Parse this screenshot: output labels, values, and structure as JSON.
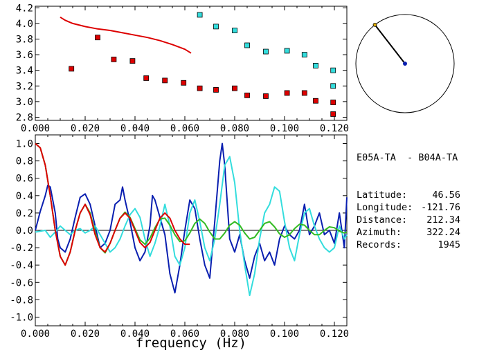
{
  "chart_data": [
    {
      "type": "scatter",
      "xlabel": "",
      "ylabel": "",
      "xlim": [
        0.0,
        0.125
      ],
      "ylim": [
        2.76,
        4.22
      ],
      "x_ticks": [
        "0.000",
        "0.020",
        "0.040",
        "0.060",
        "0.080",
        "0.100",
        "0.120"
      ],
      "y_ticks": [
        "2.8",
        "3.0",
        "3.2",
        "3.4",
        "3.6",
        "3.8",
        "4.0",
        "4.2"
      ],
      "series": [
        {
          "color": "#dd0000",
          "kind": "line",
          "x": [
            0.01,
            0.012,
            0.015,
            0.02,
            0.025,
            0.03,
            0.035,
            0.04,
            0.045,
            0.05,
            0.055,
            0.06,
            0.0625
          ],
          "y": [
            4.08,
            4.04,
            4.0,
            3.96,
            3.93,
            3.91,
            3.88,
            3.85,
            3.82,
            3.78,
            3.73,
            3.67,
            3.62
          ]
        },
        {
          "color": "#dd0000",
          "kind": "markers",
          "x": [
            0.0145,
            0.025,
            0.0315,
            0.039,
            0.0445,
            0.052,
            0.0595,
            0.066,
            0.0725,
            0.08,
            0.085,
            0.0925,
            0.101,
            0.108,
            0.1125,
            0.1195
          ],
          "y": [
            3.42,
            3.82,
            3.54,
            3.52,
            3.3,
            3.27,
            3.24,
            3.17,
            3.15,
            3.17,
            3.08,
            3.07,
            3.11,
            3.11,
            3.01,
            2.99
          ]
        },
        {
          "color": "#dd0000",
          "kind": "markers",
          "x": [
            0.1195
          ],
          "y": [
            2.84
          ]
        },
        {
          "color": "#33dddd",
          "kind": "markers",
          "x": [
            0.066,
            0.0725,
            0.08,
            0.085,
            0.0925,
            0.101,
            0.108,
            0.1125,
            0.1195,
            0.1195
          ],
          "y": [
            4.11,
            3.96,
            3.91,
            3.72,
            3.64,
            3.65,
            3.6,
            3.46,
            3.4,
            3.2
          ]
        }
      ]
    },
    {
      "type": "line",
      "xlabel": "frequency (Hz)",
      "ylabel": "",
      "xlim": [
        0.0,
        0.125
      ],
      "ylim": [
        -1.1,
        1.1
      ],
      "x_ticks": [
        "0.000",
        "0.020",
        "0.040",
        "0.060",
        "0.080",
        "0.100",
        "0.120"
      ],
      "y_ticks": [
        "-1.0",
        "-0.8",
        "-0.6",
        "-0.4",
        "-0.2",
        "0.0",
        "0.2",
        "0.4",
        "0.6",
        "0.8",
        "1.0"
      ],
      "zero_line": true,
      "series": [
        {
          "color": "#0a1fb0",
          "x": [
            0.0,
            0.002,
            0.004,
            0.005,
            0.006,
            0.008,
            0.009,
            0.01,
            0.012,
            0.014,
            0.016,
            0.018,
            0.02,
            0.022,
            0.024,
            0.026,
            0.028,
            0.03,
            0.032,
            0.034,
            0.035,
            0.036,
            0.038,
            0.04,
            0.042,
            0.044,
            0.046,
            0.047,
            0.048,
            0.05,
            0.052,
            0.054,
            0.056,
            0.058,
            0.06,
            0.062,
            0.064,
            0.066,
            0.068,
            0.07,
            0.072,
            0.074,
            0.075,
            0.076,
            0.078,
            0.08,
            0.082,
            0.084,
            0.086,
            0.088,
            0.09,
            0.092,
            0.094,
            0.096,
            0.098,
            0.1,
            0.102,
            0.104,
            0.106,
            0.108,
            0.11,
            0.112,
            0.114,
            0.116,
            0.118,
            0.12,
            0.122,
            0.124,
            0.125
          ],
          "y": [
            0.0,
            0.22,
            0.4,
            0.52,
            0.5,
            0.2,
            -0.1,
            -0.2,
            -0.25,
            -0.1,
            0.15,
            0.38,
            0.42,
            0.3,
            0.05,
            -0.2,
            -0.15,
            0.0,
            0.3,
            0.35,
            0.5,
            0.35,
            0.1,
            -0.2,
            -0.35,
            -0.25,
            0.05,
            0.4,
            0.35,
            0.15,
            -0.05,
            -0.5,
            -0.72,
            -0.4,
            0.0,
            0.35,
            0.25,
            -0.1,
            -0.4,
            -0.55,
            0.1,
            0.8,
            1.0,
            0.75,
            -0.1,
            -0.25,
            -0.05,
            -0.35,
            -0.55,
            -0.3,
            -0.15,
            -0.35,
            -0.25,
            -0.4,
            -0.1,
            0.05,
            -0.05,
            -0.1,
            0.0,
            0.3,
            -0.05,
            0.05,
            0.2,
            -0.05,
            0.0,
            -0.15,
            0.2,
            -0.2,
            0.38
          ]
        },
        {
          "color": "#33dddd",
          "x": [
            0.0,
            0.004,
            0.006,
            0.008,
            0.01,
            0.012,
            0.014,
            0.016,
            0.018,
            0.02,
            0.022,
            0.024,
            0.026,
            0.028,
            0.03,
            0.032,
            0.034,
            0.036,
            0.038,
            0.04,
            0.042,
            0.044,
            0.046,
            0.048,
            0.05,
            0.052,
            0.054,
            0.056,
            0.058,
            0.06,
            0.062,
            0.064,
            0.066,
            0.068,
            0.07,
            0.072,
            0.074,
            0.076,
            0.078,
            0.08,
            0.082,
            0.084,
            0.086,
            0.088,
            0.09,
            0.092,
            0.094,
            0.096,
            0.098,
            0.1,
            0.102,
            0.104,
            0.106,
            0.108,
            0.11,
            0.112,
            0.114,
            0.116,
            0.118,
            0.12,
            0.122,
            0.124,
            0.125
          ],
          "y": [
            -0.02,
            0.0,
            -0.08,
            -0.02,
            0.05,
            0.0,
            -0.05,
            0.0,
            0.02,
            -0.03,
            0.0,
            0.05,
            -0.05,
            -0.15,
            -0.25,
            -0.2,
            -0.1,
            0.05,
            0.18,
            0.25,
            0.15,
            -0.1,
            -0.3,
            -0.15,
            0.05,
            0.3,
            0.05,
            -0.3,
            -0.4,
            -0.2,
            0.2,
            0.35,
            0.1,
            -0.2,
            -0.35,
            -0.1,
            0.3,
            0.75,
            0.85,
            0.55,
            0.0,
            -0.4,
            -0.75,
            -0.5,
            -0.1,
            0.2,
            0.3,
            0.5,
            0.45,
            0.1,
            -0.2,
            -0.35,
            -0.05,
            0.2,
            0.25,
            0.05,
            -0.1,
            -0.2,
            -0.25,
            -0.2,
            0.05,
            -0.1,
            -0.05
          ]
        },
        {
          "color": "#33bb22",
          "x": [
            0.0,
            0.002,
            0.004,
            0.006,
            0.008,
            0.01,
            0.012,
            0.014,
            0.016,
            0.018,
            0.02,
            0.022,
            0.024,
            0.026,
            0.028,
            0.03,
            0.032,
            0.034,
            0.036,
            0.038,
            0.04,
            0.042,
            0.044,
            0.046,
            0.048,
            0.05,
            0.052,
            0.054,
            0.056,
            0.058,
            0.06,
            0.062,
            0.064,
            0.066,
            0.068,
            0.07,
            0.072,
            0.074,
            0.076,
            0.078,
            0.08,
            0.082,
            0.084,
            0.086,
            0.088,
            0.09,
            0.092,
            0.094,
            0.096,
            0.098,
            0.1,
            0.102,
            0.104,
            0.106,
            0.108,
            0.11,
            0.112,
            0.114,
            0.116,
            0.118,
            0.12,
            0.122,
            0.124,
            0.125
          ],
          "y": [
            1.0,
            0.95,
            0.75,
            0.4,
            0.0,
            -0.3,
            -0.4,
            -0.25,
            0.0,
            0.2,
            0.3,
            0.2,
            -0.02,
            -0.2,
            -0.26,
            -0.15,
            0.0,
            0.14,
            0.21,
            0.15,
            0.02,
            -0.11,
            -0.16,
            -0.09,
            0.03,
            0.13,
            0.14,
            0.06,
            -0.05,
            -0.13,
            -0.12,
            -0.03,
            0.08,
            0.13,
            0.08,
            -0.02,
            -0.1,
            -0.1,
            -0.03,
            0.06,
            0.1,
            0.06,
            -0.03,
            -0.1,
            -0.08,
            0.0,
            0.08,
            0.1,
            0.04,
            -0.04,
            -0.08,
            -0.05,
            0.02,
            0.07,
            0.06,
            0.0,
            -0.05,
            -0.05,
            0.0,
            0.04,
            0.03,
            -0.01,
            -0.03,
            -0.02
          ]
        },
        {
          "color": "#dd0000",
          "x": [
            0.0,
            0.002,
            0.004,
            0.006,
            0.008,
            0.01,
            0.012,
            0.014,
            0.016,
            0.018,
            0.02,
            0.022,
            0.024,
            0.026,
            0.028,
            0.03,
            0.032,
            0.034,
            0.036,
            0.038,
            0.04,
            0.042,
            0.044,
            0.046,
            0.048,
            0.05,
            0.052,
            0.054,
            0.056,
            0.058,
            0.06,
            0.062
          ],
          "y": [
            1.0,
            0.95,
            0.75,
            0.4,
            0.0,
            -0.3,
            -0.4,
            -0.25,
            0.0,
            0.2,
            0.3,
            0.18,
            -0.05,
            -0.2,
            -0.25,
            -0.15,
            0.0,
            0.14,
            0.2,
            0.14,
            0.0,
            -0.14,
            -0.2,
            -0.14,
            0.0,
            0.14,
            0.2,
            0.14,
            0.0,
            -0.1,
            -0.16,
            -0.16
          ]
        }
      ]
    }
  ],
  "azimuth_indicator": {
    "azimuth_deg": 322.24,
    "needle_color": "#000000",
    "center_color": "#0a1fb0",
    "tip_color": "#ddaa00"
  },
  "info": {
    "station_pair": "E05A-TA  - B04A-TA",
    "rows": [
      {
        "label": "Latitude:",
        "value": "46.56"
      },
      {
        "label": "Longitude:",
        "value": "-121.76"
      },
      {
        "label": "Distance:",
        "value": "212.34"
      },
      {
        "label": "Azimuth:",
        "value": "322.24"
      },
      {
        "label": "Records:",
        "value": "1945"
      }
    ]
  }
}
